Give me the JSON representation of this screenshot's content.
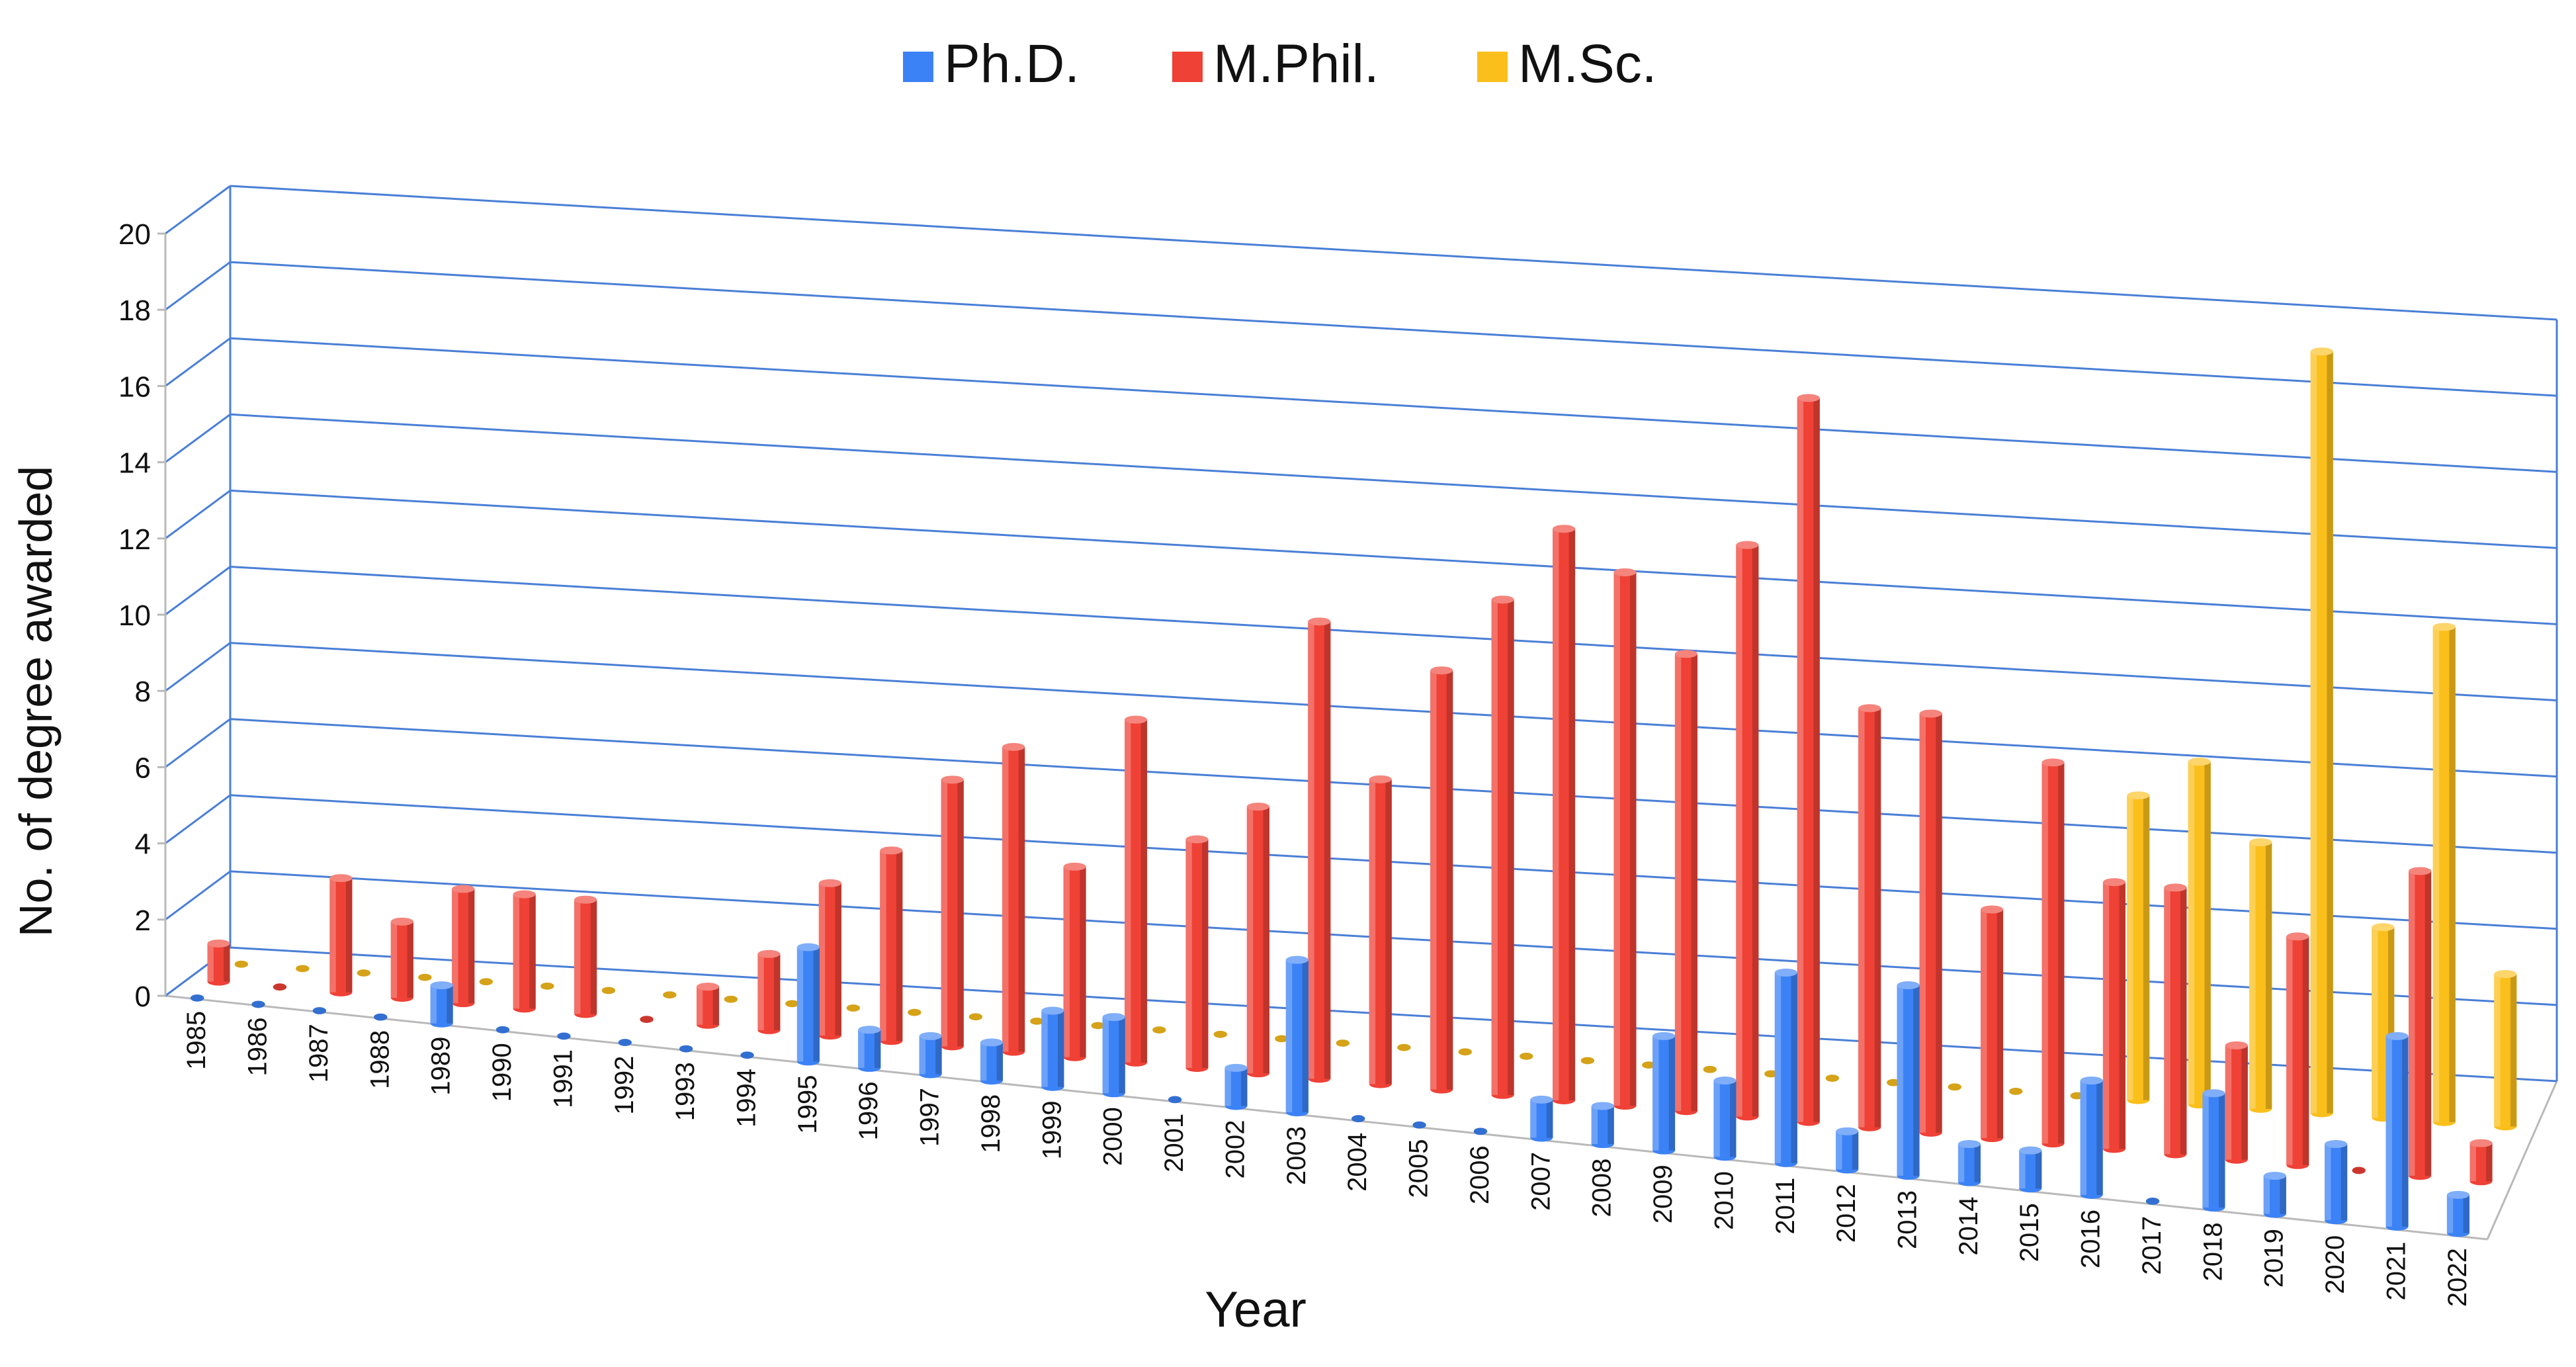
{
  "chart_data": {
    "type": "bar",
    "title": "",
    "xlabel": "Year",
    "ylabel": "No. of degree awarded",
    "ylim": [
      0,
      20
    ],
    "yticks": [
      0,
      2,
      4,
      6,
      8,
      10,
      12,
      14,
      16,
      18,
      20
    ],
    "legend_position": "top-center",
    "grid": true,
    "categories": [
      "1985",
      "1986",
      "1987",
      "1988",
      "1989",
      "1990",
      "1991",
      "1992",
      "1993",
      "1994",
      "1995",
      "1996",
      "1997",
      "1998",
      "1999",
      "2000",
      "2001",
      "2002",
      "2003",
      "2004",
      "2005",
      "2006",
      "2007",
      "2008",
      "2009",
      "2010",
      "2011",
      "2012",
      "2013",
      "2014",
      "2015",
      "2016",
      "2017",
      "2018",
      "2019",
      "2020",
      "2021",
      "2022"
    ],
    "series": [
      {
        "name": "Ph.D.",
        "color": "#3b82f6",
        "values": [
          0,
          0,
          0,
          0,
          1,
          0,
          0,
          0,
          0,
          0,
          3,
          1,
          1,
          1,
          2,
          2,
          0,
          1,
          4,
          0,
          0,
          0,
          1,
          1,
          3,
          2,
          5,
          1,
          5,
          1,
          1,
          3,
          0,
          3,
          1,
          2,
          5,
          1
        ]
      },
      {
        "name": "M.Phil.",
        "color": "#ef4136",
        "values": [
          1,
          0,
          3,
          2,
          3,
          3,
          3,
          0,
          1,
          2,
          4,
          5,
          7,
          8,
          5,
          9,
          6,
          7,
          12,
          8,
          11,
          13,
          15,
          14,
          12,
          15,
          19,
          11,
          11,
          6,
          10,
          7,
          7,
          3,
          6,
          0,
          8,
          1
        ]
      },
      {
        "name": "M.Sc.",
        "color": "#fbbf1c",
        "values": [
          0,
          0,
          0,
          0,
          0,
          0,
          0,
          0,
          0,
          0,
          0,
          0,
          0,
          0,
          0,
          0,
          0,
          0,
          0,
          0,
          0,
          0,
          0,
          0,
          0,
          0,
          0,
          0,
          0,
          0,
          0,
          8,
          9,
          7,
          20,
          5,
          13,
          4
        ]
      }
    ]
  }
}
